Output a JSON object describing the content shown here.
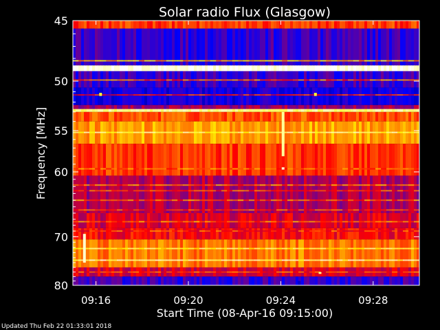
{
  "chart_data": {
    "type": "heatmap",
    "title": "Solar radio Flux (Glasgow)",
    "xlabel": "Start Time (08-Apr-16 09:15:00)",
    "ylabel": "Frequency [MHz]",
    "x_ticks": [
      "09:16",
      "09:20",
      "09:24",
      "09:28"
    ],
    "x_tick_minutes": [
      1,
      5,
      9,
      13
    ],
    "xlim_minutes": [
      0,
      15
    ],
    "y_ticks": [
      45,
      50,
      55,
      60,
      70,
      80
    ],
    "ylim": [
      45,
      80
    ],
    "y_scale": "reciprocal",
    "colormap": [
      "#000000",
      "#0000ff",
      "#ff0000",
      "#ffff00",
      "#ffffff"
    ],
    "frequency_bands": [
      {
        "f0": 45.0,
        "f1": 45.6,
        "level": 0.55
      },
      {
        "f0": 45.6,
        "f1": 48.6,
        "level": 0.3
      },
      {
        "f0": 48.6,
        "f1": 49.1,
        "level": 0.98
      },
      {
        "f0": 49.1,
        "f1": 50.6,
        "level": 0.3
      },
      {
        "f0": 50.6,
        "f1": 52.3,
        "level": 0.25
      },
      {
        "f0": 52.3,
        "f1": 52.7,
        "level": 0.4
      },
      {
        "f0": 52.7,
        "f1": 53.0,
        "level": 0.88
      },
      {
        "f0": 53.0,
        "f1": 54.0,
        "level": 0.58
      },
      {
        "f0": 54.0,
        "f1": 56.5,
        "level": 0.66
      },
      {
        "f0": 56.5,
        "f1": 60.5,
        "level": 0.55
      },
      {
        "f0": 60.5,
        "f1": 66.0,
        "level": 0.42
      },
      {
        "f0": 66.0,
        "f1": 68.5,
        "level": 0.46
      },
      {
        "f0": 68.5,
        "f1": 70.5,
        "level": 0.5
      },
      {
        "f0": 70.5,
        "f1": 76.0,
        "level": 0.62
      },
      {
        "f0": 76.0,
        "f1": 78.0,
        "level": 0.46
      },
      {
        "f0": 78.0,
        "f1": 80.0,
        "level": 0.3
      }
    ],
    "narrow_lines": [
      {
        "f": 48.2,
        "level": 0.7
      },
      {
        "f": 49.9,
        "level": 0.6
      },
      {
        "f": 51.3,
        "level": 0.5
      },
      {
        "f": 55.2,
        "level": 0.85
      },
      {
        "f": 59.6,
        "level": 0.6
      },
      {
        "f": 61.8,
        "level": 0.6
      },
      {
        "f": 62.6,
        "level": 0.55
      },
      {
        "f": 64.0,
        "level": 0.6
      },
      {
        "f": 65.5,
        "level": 0.55
      },
      {
        "f": 67.4,
        "level": 0.6
      },
      {
        "f": 69.0,
        "level": 0.55
      },
      {
        "f": 72.2,
        "level": 0.8
      },
      {
        "f": 74.5,
        "level": 0.9
      },
      {
        "f": 77.0,
        "level": 0.55
      }
    ],
    "bursts": [
      {
        "minute": 9.1,
        "f0": 53.0,
        "f1": 58.0,
        "level": 0.9
      },
      {
        "minute": 9.1,
        "f0": 59.4,
        "f1": 59.7,
        "level": 0.95
      },
      {
        "minute": 0.5,
        "f0": 69.5,
        "f1": 75.0,
        "level": 0.95
      },
      {
        "minute": 1.2,
        "f0": 51.1,
        "f1": 51.4,
        "level": 0.8
      },
      {
        "minute": 10.5,
        "f0": 51.1,
        "f1": 51.4,
        "level": 0.8
      },
      {
        "minute": 10.7,
        "f0": 77.0,
        "f1": 77.4,
        "level": 0.9
      },
      {
        "minute": 9.8,
        "f0": 79.0,
        "f1": 80.0,
        "level": 0.2
      }
    ]
  },
  "footer": {
    "updated": "Updated Thu Feb 22 01:33:01 2018"
  }
}
